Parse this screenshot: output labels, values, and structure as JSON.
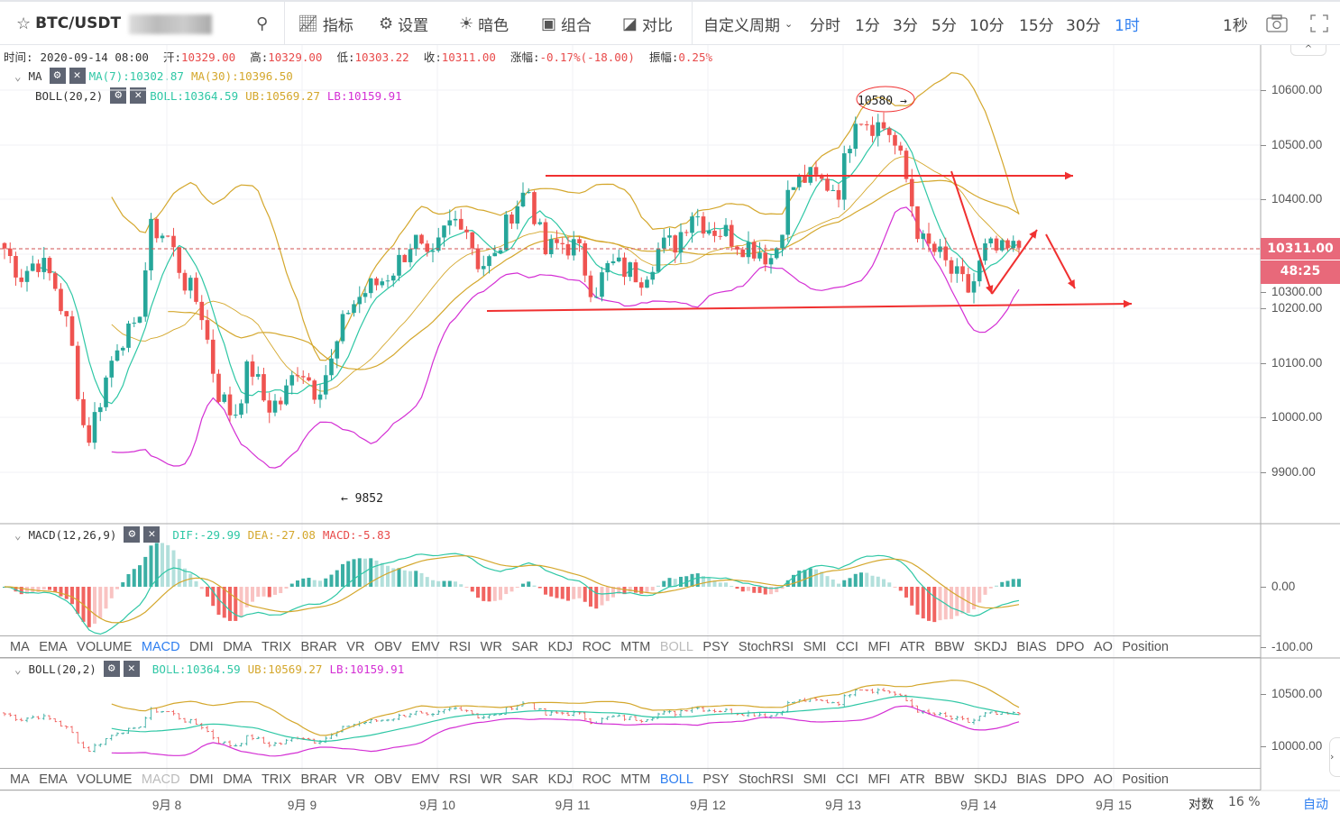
{
  "toolbar": {
    "symbol": "BTC/USDT",
    "indicators": "指标",
    "settings": "设置",
    "dark": "暗色",
    "combo": "组合",
    "compare": "对比",
    "custom_period": "自定义周期",
    "periods": [
      "分时",
      "1分",
      "3分",
      "5分",
      "10分",
      "15分",
      "30分",
      "1时"
    ],
    "active_period": "1时",
    "one_second": "1秒"
  },
  "info": {
    "time_label": "时间:",
    "time": "2020-09-14 08:00",
    "open_label": "开:",
    "open": "10329.00",
    "high_label": "高:",
    "high": "10329.00",
    "low_label": "低:",
    "low": "10303.22",
    "close_label": "收:",
    "close": "10311.00",
    "change_label": "涨幅:",
    "change": "-0.17%(-18.00)",
    "amp_label": "振幅:",
    "amp": "0.25%"
  },
  "main_legend": {
    "ma_name": "MA",
    "ma7": "MA(7):10302.87",
    "ma30": "MA(30):10396.50",
    "boll_name": "BOLL(20,2)",
    "boll": "BOLL:10364.59",
    "ub": "UB:10569.27",
    "lb": "LB:10159.91"
  },
  "macd_legend": {
    "name": "MACD(12,26,9)",
    "dif": "DIF:-29.99",
    "dea": "DEA:-27.08",
    "macd": "MACD:-5.83"
  },
  "boll_legend": {
    "name": "BOLL(20,2)",
    "boll": "BOLL:10364.59",
    "ub": "UB:10569.27",
    "lb": "LB:10159.91"
  },
  "price_axis": [
    "10600.00",
    "10500.00",
    "10400.00",
    "10300.00",
    "10200.00",
    "10100.00",
    "10000.00",
    "9900.00"
  ],
  "last_price": "10311.00",
  "countdown": "48:25",
  "macd_axis": [
    "0.00",
    "-100.00"
  ],
  "boll_axis": [
    "10500.00",
    "10000.00"
  ],
  "annotations": {
    "high_mark": "10580",
    "low_mark": "9852"
  },
  "indicator_tabs": [
    "MA",
    "EMA",
    "VOLUME",
    "MACD",
    "DMI",
    "DMA",
    "TRIX",
    "BRAR",
    "VR",
    "OBV",
    "EMV",
    "RSI",
    "WR",
    "SAR",
    "KDJ",
    "ROC",
    "MTM",
    "BOLL",
    "PSY",
    "StochRSI",
    "SMI",
    "CCI",
    "MFI",
    "ATR",
    "BBW",
    "SKDJ",
    "BIAS",
    "DPO",
    "AO",
    "Position"
  ],
  "time_axis": [
    "9月 8",
    "9月 9",
    "9月 10",
    "9月 11",
    "9月 12",
    "9月 13",
    "9月 14",
    "9月 15"
  ],
  "bottom": {
    "log": "对数",
    "percent": "16 %",
    "auto": "自动"
  },
  "colors": {
    "up": "#26a69a",
    "down": "#ef5350",
    "ma7": "#2ec7a5",
    "ma30": "#d4a72c",
    "lb": "#d42fd4",
    "accent": "#2f7ff0",
    "annot": "#f03030"
  },
  "chart_data": {
    "type": "candlestick",
    "interval": "1h",
    "key_closes": [
      10310,
      10260,
      10290,
      10250,
      10150,
      9950,
      10050,
      10150,
      10150,
      10350,
      10330,
      10250,
      10200,
      10050,
      10000,
      10100,
      10020,
      10030,
      10100,
      10050,
      10100,
      10200,
      10230,
      10250,
      10280,
      10330,
      10270,
      10350,
      10370,
      10280,
      10290,
      10380,
      10420,
      10300,
      10320,
      10310,
      10230,
      10280,
      10270,
      10260,
      10310,
      10320,
      10380,
      10350,
      10340,
      10320,
      10310,
      10290,
      10420,
      10440,
      10430,
      10420,
      10560,
      10540,
      10530,
      10450,
      10320,
      10300,
      10260,
      10230,
      10310,
      10300,
      10311
    ],
    "price_range": [
      9850,
      10650
    ]
  }
}
